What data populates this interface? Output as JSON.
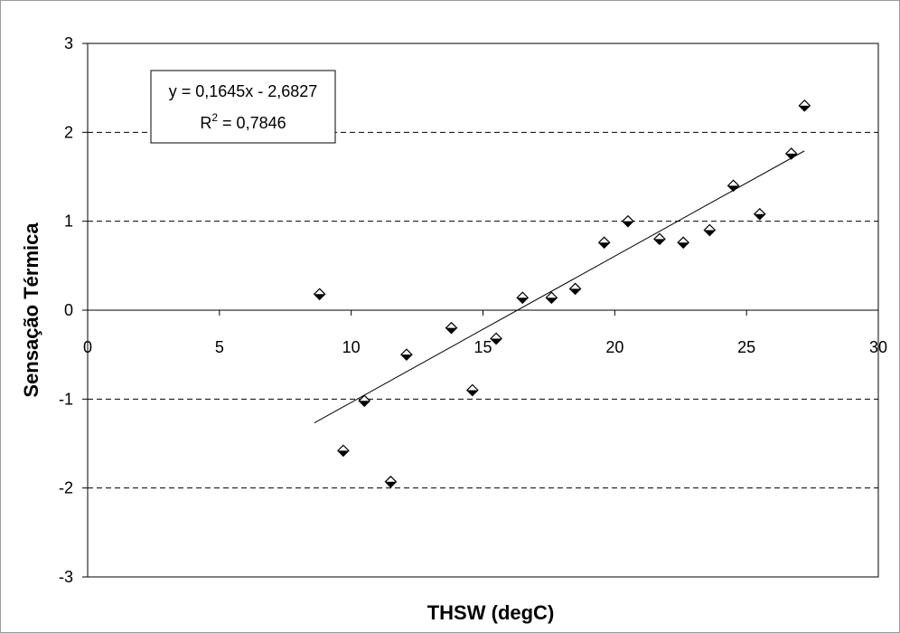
{
  "chart_data": {
    "type": "scatter",
    "xlabel": "THSW (degC)",
    "ylabel": "Sensação Térmica",
    "xlim": [
      0,
      30
    ],
    "ylim": [
      -3,
      3
    ],
    "x_ticks": [
      0,
      5,
      10,
      15,
      20,
      25,
      30
    ],
    "y_ticks": [
      -3,
      -2,
      -1,
      0,
      1,
      2,
      3
    ],
    "x_tick_labels": [
      "0",
      "5",
      "10",
      "15",
      "20",
      "25",
      "30"
    ],
    "y_tick_labels": [
      "-3",
      "-2",
      "-1",
      "0",
      "1",
      "2",
      "3"
    ],
    "grid": "horizontal-dashed",
    "points": [
      {
        "x": 8.8,
        "y": 0.18
      },
      {
        "x": 9.7,
        "y": -1.58
      },
      {
        "x": 10.5,
        "y": -1.02
      },
      {
        "x": 11.5,
        "y": -1.93
      },
      {
        "x": 12.1,
        "y": -0.5
      },
      {
        "x": 13.8,
        "y": -0.2
      },
      {
        "x": 14.6,
        "y": -0.9
      },
      {
        "x": 15.5,
        "y": -0.32
      },
      {
        "x": 16.5,
        "y": 0.14
      },
      {
        "x": 17.6,
        "y": 0.14
      },
      {
        "x": 18.5,
        "y": 0.24
      },
      {
        "x": 19.6,
        "y": 0.76
      },
      {
        "x": 20.5,
        "y": 1.0
      },
      {
        "x": 21.7,
        "y": 0.8
      },
      {
        "x": 22.6,
        "y": 0.76
      },
      {
        "x": 23.6,
        "y": 0.9
      },
      {
        "x": 24.5,
        "y": 1.4
      },
      {
        "x": 25.5,
        "y": 1.08
      },
      {
        "x": 26.7,
        "y": 1.76
      },
      {
        "x": 27.2,
        "y": 2.3
      }
    ],
    "trendline": {
      "type": "linear",
      "slope": 0.1645,
      "intercept": -2.6827,
      "x_range": [
        8.6,
        27.2
      ],
      "equation_label": "y = 0,1645x - 2,6827",
      "r2_prefix": "R",
      "r2_exponent": "2",
      "r2_value": " = 0,7846"
    }
  }
}
